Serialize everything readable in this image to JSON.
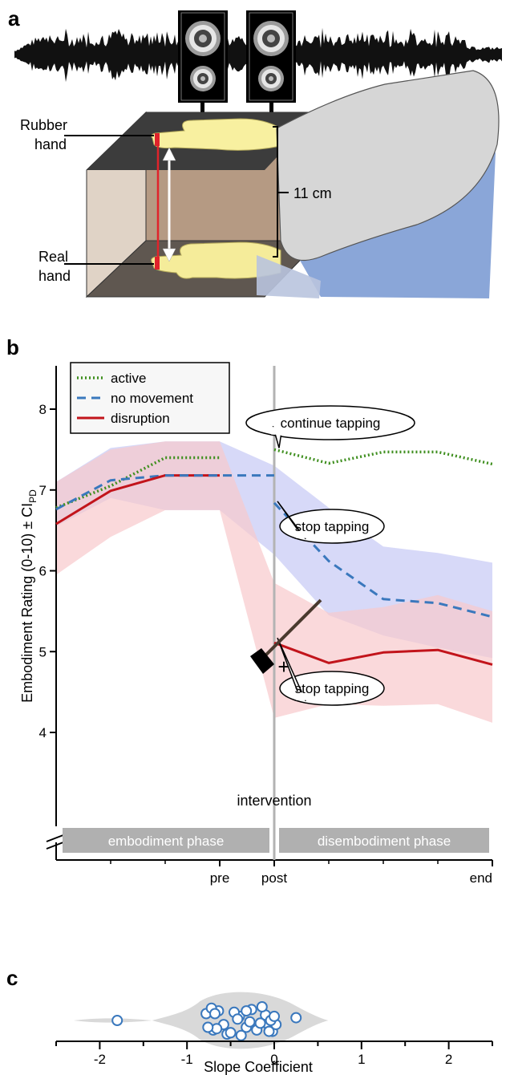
{
  "panels": {
    "a": "a",
    "b": "b",
    "c": "c"
  },
  "panel_a": {
    "rubber_hand_label": [
      "Rubber",
      "hand"
    ],
    "real_hand_label": [
      "Real",
      "hand"
    ],
    "distance_label": "11 cm"
  },
  "chart_data": [
    {
      "type": "line",
      "ylabel_main": "Embodiment Rating (0-10) ± CI",
      "ylabel_sub": "PD",
      "ylim": [
        4,
        8.5
      ],
      "yticks": [
        4,
        5,
        6,
        7,
        8
      ],
      "x": [
        0,
        1,
        2,
        3,
        4,
        5,
        6,
        7,
        8
      ],
      "xtick_labels": [
        {
          "x": 3,
          "label": "pre"
        },
        {
          "x": 4,
          "label": "post"
        },
        {
          "x": 8,
          "label": "end"
        }
      ],
      "vline": {
        "x": 4,
        "label": "intervention"
      },
      "phases": [
        {
          "label": "embodiment phase",
          "x_range": [
            0,
            4
          ]
        },
        {
          "label": "disembodiment phase",
          "x_range": [
            4,
            8
          ]
        }
      ],
      "legend": {
        "placement": "top-left",
        "entries": [
          "active",
          "no movement",
          "disruption"
        ]
      },
      "series": [
        {
          "name": "active",
          "color": "#3f8f1f",
          "style": "dotted",
          "values": [
            6.78,
            7.05,
            7.4,
            7.4,
            7.5,
            7.33,
            7.47,
            7.47,
            7.32
          ]
        },
        {
          "name": "no movement",
          "color": "#3a78bd",
          "style": "dashed",
          "values": [
            6.76,
            7.12,
            7.18,
            7.18,
            6.84,
            6.12,
            5.65,
            5.6,
            5.43
          ],
          "ci_low": [
            6.55,
            6.9,
            6.75,
            6.75,
            6.2,
            5.45,
            5.2,
            5.05,
            4.92
          ],
          "ci_high": [
            7.1,
            7.52,
            7.6,
            7.6,
            7.3,
            6.78,
            6.3,
            6.22,
            6.1
          ],
          "ci_color": "#c9ccf5"
        },
        {
          "name": "disruption",
          "color": "#c2141b",
          "style": "solid",
          "values": [
            6.58,
            6.99,
            7.18,
            7.18,
            5.11,
            4.86,
            4.99,
            5.02,
            4.84
          ],
          "ci_low": [
            5.95,
            6.42,
            6.75,
            6.75,
            4.18,
            4.35,
            4.33,
            4.35,
            4.12
          ],
          "ci_high": [
            7.1,
            7.5,
            7.6,
            7.6,
            5.85,
            5.48,
            5.55,
            5.7,
            5.5
          ],
          "ci_color": "#f8c9cc"
        }
      ],
      "annotations": [
        {
          "text": "continue tapping",
          "series": "active"
        },
        {
          "text": "stop tapping",
          "series": "no movement"
        },
        {
          "text": "stop tapping",
          "series": "disruption",
          "marker": "hammer",
          "symbol": "+"
        }
      ]
    },
    {
      "type": "scatter",
      "xlabel": "Slope Coefficient",
      "xlim": [
        -2.5,
        2.5
      ],
      "xticks": [
        -2,
        -1,
        0,
        1,
        2
      ],
      "marker_color": "#3a78bd",
      "violin_color": "#d9d9d9",
      "values": [
        -1.8,
        -0.78,
        -0.7,
        -0.64,
        -0.58,
        -0.5,
        -0.4,
        -0.32,
        -0.26,
        -0.16,
        -0.02,
        0.25,
        -0.66,
        -0.46,
        -0.28,
        -0.06,
        -0.72,
        -0.54,
        -0.42,
        -0.2,
        -0.1,
        0.02,
        -0.38,
        -0.14,
        -0.04,
        -0.76,
        -0.68,
        -0.5,
        -0.32,
        -0.16,
        -0.06,
        0.0
      ]
    }
  ]
}
